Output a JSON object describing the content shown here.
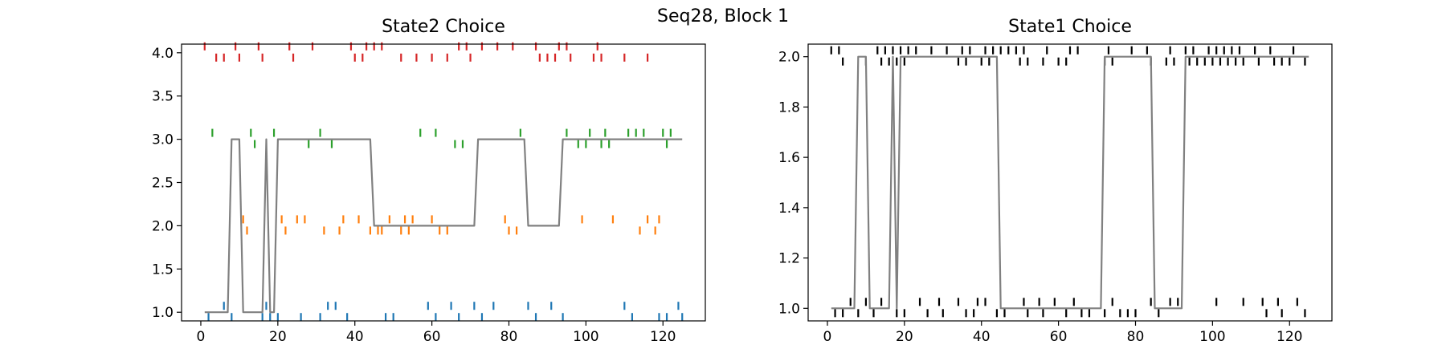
{
  "suptitle": "Seq28, Block 1",
  "chart_data": [
    {
      "type": "line",
      "title": "State2 Choice",
      "xlabel": "",
      "ylabel": "",
      "xlim": [
        -5,
        131
      ],
      "ylim": [
        0.9,
        4.1
      ],
      "xticks": [
        0,
        20,
        40,
        60,
        80,
        100,
        120
      ],
      "yticks": [
        1.0,
        1.5,
        2.0,
        2.5,
        3.0,
        3.5,
        4.0
      ],
      "ytick_labels": [
        "1.0",
        "1.5",
        "2.0",
        "2.5",
        "3.0",
        "3.5",
        "4.0"
      ],
      "grid": false,
      "line": {
        "name": "state2 choice",
        "color": "#808080",
        "x": [
          1,
          2,
          3,
          4,
          5,
          6,
          7,
          8,
          9,
          10,
          11,
          12,
          13,
          14,
          15,
          16,
          17,
          18,
          19,
          20,
          21,
          22,
          23,
          24,
          25,
          26,
          27,
          28,
          29,
          30,
          31,
          32,
          33,
          34,
          35,
          36,
          37,
          38,
          39,
          40,
          41,
          42,
          43,
          44,
          45,
          46,
          47,
          48,
          49,
          50,
          51,
          52,
          53,
          54,
          55,
          56,
          57,
          58,
          59,
          60,
          61,
          62,
          63,
          64,
          65,
          66,
          67,
          68,
          69,
          70,
          71,
          72,
          73,
          74,
          75,
          76,
          77,
          78,
          79,
          80,
          81,
          82,
          83,
          84,
          85,
          86,
          87,
          88,
          89,
          90,
          91,
          92,
          93,
          94,
          95,
          96,
          97,
          98,
          99,
          100,
          101,
          102,
          103,
          104,
          105,
          106,
          107,
          108,
          109,
          110,
          111,
          112,
          113,
          114,
          115,
          116,
          117,
          118,
          119,
          120,
          121,
          122,
          123,
          124,
          125
        ],
        "y": [
          1,
          1,
          1,
          1,
          1,
          1,
          1,
          3,
          3,
          3,
          1,
          1,
          1,
          1,
          1,
          1,
          3,
          1,
          1,
          3,
          3,
          3,
          3,
          3,
          3,
          3,
          3,
          3,
          3,
          3,
          3,
          3,
          3,
          3,
          3,
          3,
          3,
          3,
          3,
          3,
          3,
          3,
          3,
          3,
          2,
          2,
          2,
          2,
          2,
          2,
          2,
          2,
          2,
          2,
          2,
          2,
          2,
          2,
          2,
          2,
          2,
          2,
          2,
          2,
          2,
          2,
          2,
          2,
          2,
          2,
          2,
          3,
          3,
          3,
          3,
          3,
          3,
          3,
          3,
          3,
          3,
          3,
          3,
          3,
          2,
          2,
          2,
          2,
          2,
          2,
          2,
          2,
          2,
          3,
          3,
          3,
          3,
          3,
          3,
          3,
          3,
          3,
          3,
          3,
          3,
          3,
          3,
          3,
          3,
          3,
          3,
          3,
          3,
          3,
          3,
          3,
          3,
          3,
          3,
          3,
          3,
          3,
          3,
          3,
          3
        ]
      },
      "series": [
        {
          "name": "1",
          "color": "#1f77b4",
          "value": 1,
          "above": [
            6,
            17,
            33,
            35,
            59,
            65,
            71,
            76,
            85,
            91,
            110,
            124
          ],
          "below": [
            2,
            8,
            16,
            18,
            20,
            26,
            31,
            38,
            48,
            50,
            61,
            67,
            73,
            87,
            94,
            112,
            119,
            121,
            125
          ]
        },
        {
          "name": "2",
          "color": "#ff7f0e",
          "value": 2,
          "above": [
            11,
            21,
            25,
            27,
            37,
            41,
            49,
            53,
            55,
            60,
            79,
            99,
            107,
            116,
            119
          ],
          "below": [
            12,
            22,
            32,
            36,
            44,
            46,
            47,
            52,
            54,
            62,
            64,
            80,
            82,
            114,
            118
          ]
        },
        {
          "name": "3",
          "color": "#2ca02c",
          "value": 3,
          "above": [
            3,
            13,
            19,
            31,
            57,
            61,
            83,
            95,
            101,
            105,
            111,
            113,
            115,
            120,
            122
          ],
          "below": [
            14,
            28,
            34,
            66,
            68,
            98,
            100,
            104,
            106,
            121
          ]
        },
        {
          "name": "4",
          "color": "#d62728",
          "value": 4,
          "above": [
            1,
            9,
            15,
            23,
            29,
            39,
            43,
            45,
            47,
            67,
            69,
            73,
            77,
            81,
            87,
            93,
            95,
            103
          ],
          "below": [
            4,
            6,
            10,
            16,
            24,
            40,
            42,
            52,
            56,
            60,
            64,
            70,
            88,
            90,
            92,
            96,
            102,
            104,
            110,
            116
          ]
        }
      ]
    },
    {
      "type": "line",
      "title": "State1 Choice",
      "xlabel": "",
      "ylabel": "",
      "xlim": [
        -5,
        131
      ],
      "ylim": [
        0.95,
        2.05
      ],
      "xticks": [
        0,
        20,
        40,
        60,
        80,
        100,
        120
      ],
      "yticks": [
        1.0,
        1.2,
        1.4,
        1.6,
        1.8,
        2.0
      ],
      "ytick_labels": [
        "1.0",
        "1.2",
        "1.4",
        "1.6",
        "1.8",
        "2.0"
      ],
      "grid": false,
      "line": {
        "name": "state1 choice",
        "color": "#808080",
        "x": [
          1,
          2,
          3,
          4,
          5,
          6,
          7,
          8,
          9,
          10,
          11,
          12,
          13,
          14,
          15,
          16,
          17,
          18,
          19,
          20,
          21,
          22,
          23,
          24,
          25,
          26,
          27,
          28,
          29,
          30,
          31,
          32,
          33,
          34,
          35,
          36,
          37,
          38,
          39,
          40,
          41,
          42,
          43,
          44,
          45,
          46,
          47,
          48,
          49,
          50,
          51,
          52,
          53,
          54,
          55,
          56,
          57,
          58,
          59,
          60,
          61,
          62,
          63,
          64,
          65,
          66,
          67,
          68,
          69,
          70,
          71,
          72,
          73,
          74,
          75,
          76,
          77,
          78,
          79,
          80,
          81,
          82,
          83,
          84,
          85,
          86,
          87,
          88,
          89,
          90,
          91,
          92,
          93,
          94,
          95,
          96,
          97,
          98,
          99,
          100,
          101,
          102,
          103,
          104,
          105,
          106,
          107,
          108,
          109,
          110,
          111,
          112,
          113,
          114,
          115,
          116,
          117,
          118,
          119,
          120,
          121,
          122,
          123,
          124,
          125
        ],
        "y": [
          1,
          1,
          1,
          1,
          1,
          1,
          1,
          2,
          2,
          2,
          1,
          1,
          1,
          1,
          1,
          1,
          2,
          1,
          2,
          2,
          2,
          2,
          2,
          2,
          2,
          2,
          2,
          2,
          2,
          2,
          2,
          2,
          2,
          2,
          2,
          2,
          2,
          2,
          2,
          2,
          2,
          2,
          2,
          2,
          1,
          1,
          1,
          1,
          1,
          1,
          1,
          1,
          1,
          1,
          1,
          1,
          1,
          1,
          1,
          1,
          1,
          1,
          1,
          1,
          1,
          1,
          1,
          1,
          1,
          1,
          1,
          2,
          2,
          2,
          2,
          2,
          2,
          2,
          2,
          2,
          2,
          2,
          2,
          2,
          1,
          1,
          1,
          1,
          1,
          1,
          1,
          1,
          2,
          2,
          2,
          2,
          2,
          2,
          2,
          2,
          2,
          2,
          2,
          2,
          2,
          2,
          2,
          2,
          2,
          2,
          2,
          2,
          2,
          2,
          2,
          2,
          2,
          2,
          2,
          2,
          2,
          2,
          2,
          2,
          2
        ]
      },
      "series": [
        {
          "name": "choice",
          "color": "#000000",
          "value": 1,
          "above": [
            6,
            10,
            14,
            24,
            29,
            34,
            39,
            41,
            51,
            55,
            59,
            64,
            74,
            84,
            89,
            91,
            101,
            108,
            113,
            117,
            122
          ],
          "below": [
            2,
            4,
            8,
            12,
            18,
            20,
            26,
            30,
            36,
            38,
            44,
            46,
            52,
            56,
            62,
            66,
            68,
            72,
            76,
            78,
            80,
            86,
            114,
            118,
            124
          ]
        },
        {
          "name": "choice",
          "color": "#000000",
          "value": 2,
          "above": [
            1,
            3,
            13,
            15,
            17,
            19,
            21,
            23,
            27,
            31,
            35,
            37,
            41,
            43,
            45,
            47,
            49,
            51,
            57,
            63,
            65,
            73,
            79,
            83,
            89,
            93,
            95,
            99,
            101,
            103,
            105,
            107,
            111,
            115,
            121
          ],
          "below": [
            4,
            10,
            14,
            16,
            18,
            20,
            34,
            36,
            40,
            42,
            50,
            52,
            56,
            60,
            62,
            72,
            74,
            84,
            88,
            90,
            94,
            96,
            98,
            100,
            102,
            104,
            106,
            108,
            112,
            116,
            118,
            120,
            124
          ]
        }
      ]
    }
  ]
}
